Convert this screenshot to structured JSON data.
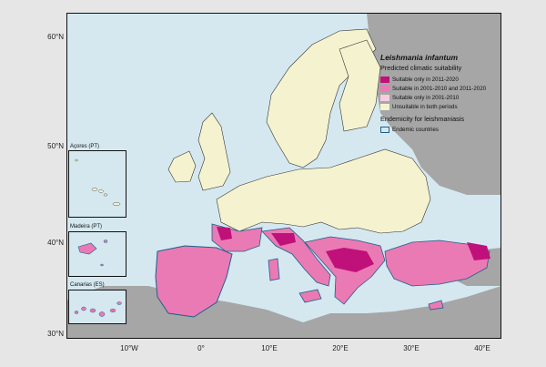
{
  "axes": {
    "lat_labels": [
      "60°N",
      "50°N",
      "40°N",
      "30°N"
    ],
    "lon_labels": [
      "10°W",
      "0°",
      "10°E",
      "20°E",
      "30°E",
      "40°E"
    ]
  },
  "legend": {
    "title": "Leishmania infantum",
    "subtitle": "Predicted climatic suitability",
    "items": [
      {
        "label": "Suitable only in 2011-2020",
        "color": "#c0107a"
      },
      {
        "label": "Suitable in 2001-2010 and 2011-2020",
        "color": "#ea7ab4"
      },
      {
        "label": "Suitable only in 2001-2010",
        "color": "#f6cce2"
      },
      {
        "label": "Unsuitable in both periods",
        "color": "#f5f3cf"
      }
    ],
    "endemicity_title": "Endemicity for leishmaniasis",
    "endemic_label": "Endemic countries"
  },
  "insets": [
    {
      "label": "Açores (PT)"
    },
    {
      "label": "Madeira (PT)"
    },
    {
      "label": "Canarias (ES)"
    }
  ],
  "colors": {
    "sea": "#d5e8f0",
    "non_study_land": "#a6a6a6",
    "unsuitable": "#f5f3cf",
    "suitable_both": "#ea7ab4",
    "suitable_recent": "#c0107a",
    "endemic_border": "#1e5f8a"
  }
}
